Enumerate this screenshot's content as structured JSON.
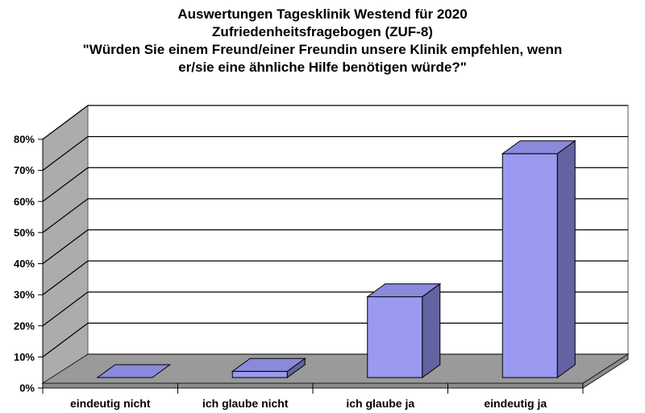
{
  "title": {
    "lines": [
      "Auswertungen Tagesklinik Westend für 2020",
      "Zufriedenheitsfragebogen (ZUF-8)",
      "\"Würden Sie einem Freund/einer Freundin unsere Klinik empfehlen, wenn",
      "er/sie eine ähnliche Hilfe benötigen würde?\""
    ]
  },
  "chart_data": {
    "type": "bar",
    "variant": "3d-column",
    "title": "Auswertungen Tagesklinik Westend für 2020 Zufriedenheitsfragebogen (ZUF-8) \"Würden Sie einem Freund/einer Freundin unsere Klinik empfehlen, wenn er/sie eine ähnliche Hilfe benötigen würde?\"",
    "categories": [
      "eindeutig nicht",
      "ich glaube nicht",
      "ich glaube ja",
      "eindeutig ja"
    ],
    "values": [
      0,
      2,
      26,
      72
    ],
    "unit": "%",
    "xlabel": "",
    "ylabel": "",
    "ylim": [
      0,
      80
    ],
    "y_ticks": [
      "0%",
      "10%",
      "20%",
      "30%",
      "40%",
      "50%",
      "60%",
      "70%",
      "80%"
    ],
    "grid": true,
    "legend": false,
    "colors": {
      "bar_front": "#9A9AF0",
      "bar_top": "#8A8ADC",
      "bar_side": "#6363A3",
      "side_wall": "#ACACAC",
      "floor": "#9A9A9A",
      "floor_edge": "#8C8C8C",
      "back_wall": "#FFFFFF",
      "gridline": "#000000",
      "wall_border": "#595959",
      "text": "#000000"
    }
  }
}
